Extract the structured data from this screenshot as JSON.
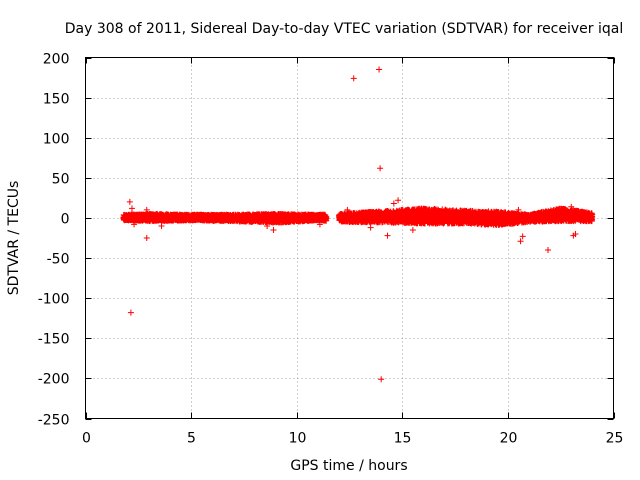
{
  "chart_data": {
    "type": "scatter",
    "title": "Day 308 of 2011, Sidereal Day-to-day VTEC variation (SDTVAR) for receiver iqal",
    "xlabel": "GPS time / hours",
    "ylabel": "SDTVAR / TECUs",
    "xlim": [
      0,
      25
    ],
    "ylim": [
      -250,
      200
    ],
    "xticks": [
      0,
      5,
      10,
      15,
      20,
      25
    ],
    "yticks": [
      200,
      150,
      100,
      50,
      0,
      -50,
      -100,
      -150,
      -200,
      -250
    ],
    "grid": true,
    "legend": "none",
    "marker": "+",
    "color": "#ff0000",
    "band": {
      "description": "dense cluster of points around zero",
      "x_range": [
        1.8,
        24.0
      ],
      "gaps": [
        [
          11.4,
          12.0
        ]
      ],
      "envelope": [
        {
          "x": 1.8,
          "low": -3,
          "high": 4
        },
        {
          "x": 3.0,
          "low": -4,
          "high": 5
        },
        {
          "x": 5.0,
          "low": -3,
          "high": 4
        },
        {
          "x": 7.0,
          "low": -4,
          "high": 4
        },
        {
          "x": 9.0,
          "low": -6,
          "high": 5
        },
        {
          "x": 11.0,
          "low": -3,
          "high": 4
        },
        {
          "x": 12.5,
          "low": -5,
          "high": 6
        },
        {
          "x": 14.5,
          "low": -6,
          "high": 9
        },
        {
          "x": 16.0,
          "low": -7,
          "high": 12
        },
        {
          "x": 18.0,
          "low": -7,
          "high": 9
        },
        {
          "x": 19.5,
          "low": -9,
          "high": 8
        },
        {
          "x": 21.0,
          "low": -5,
          "high": 4
        },
        {
          "x": 22.5,
          "low": -4,
          "high": 12
        },
        {
          "x": 24.0,
          "low": -4,
          "high": 6
        }
      ]
    },
    "outliers": [
      {
        "x": 2.15,
        "y": -118
      },
      {
        "x": 2.1,
        "y": 20
      },
      {
        "x": 2.2,
        "y": 12
      },
      {
        "x": 2.3,
        "y": -8
      },
      {
        "x": 2.9,
        "y": -25
      },
      {
        "x": 2.9,
        "y": 10
      },
      {
        "x": 3.6,
        "y": -10
      },
      {
        "x": 8.9,
        "y": -15
      },
      {
        "x": 8.6,
        "y": -10
      },
      {
        "x": 11.1,
        "y": -8
      },
      {
        "x": 12.4,
        "y": 10
      },
      {
        "x": 12.7,
        "y": 174
      },
      {
        "x": 13.9,
        "y": 185
      },
      {
        "x": 13.95,
        "y": 62
      },
      {
        "x": 14.0,
        "y": -201
      },
      {
        "x": 13.5,
        "y": -12
      },
      {
        "x": 14.3,
        "y": -22
      },
      {
        "x": 14.6,
        "y": 18
      },
      {
        "x": 14.8,
        "y": 22
      },
      {
        "x": 15.5,
        "y": -15
      },
      {
        "x": 20.6,
        "y": -29
      },
      {
        "x": 20.7,
        "y": -23
      },
      {
        "x": 20.5,
        "y": 10
      },
      {
        "x": 21.9,
        "y": -40
      },
      {
        "x": 23.1,
        "y": -22
      },
      {
        "x": 23.2,
        "y": -20
      },
      {
        "x": 23.0,
        "y": 14
      }
    ]
  }
}
